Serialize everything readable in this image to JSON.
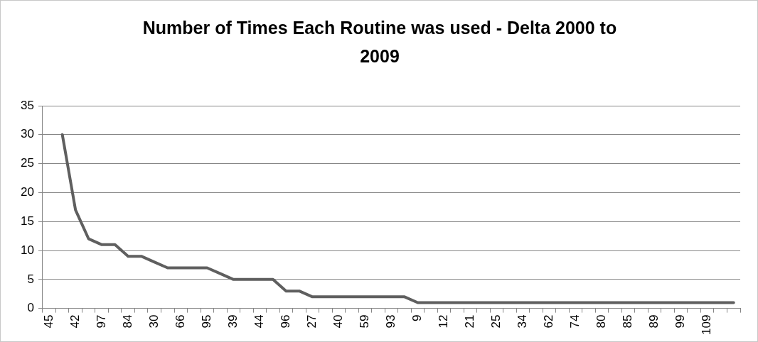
{
  "chart_data": {
    "type": "line",
    "title": "Number of Times Each Routine was  used - Delta 2000 to 2009",
    "categories": [
      "45",
      null,
      "42",
      null,
      "97",
      null,
      "84",
      null,
      "30",
      null,
      "66",
      null,
      "95",
      null,
      "39",
      null,
      "44",
      null,
      "96",
      null,
      "27",
      null,
      "40",
      null,
      "59",
      null,
      "93",
      null,
      "9",
      null,
      "12",
      null,
      "21",
      null,
      "25",
      null,
      "34",
      null,
      "62",
      null,
      "74",
      null,
      "80",
      null,
      "85",
      null,
      "89",
      null,
      "99",
      null,
      "109",
      null,
      null
    ],
    "series": [
      {
        "color": "#5f5f5f",
        "values": [
          null,
          30,
          17,
          12,
          11,
          11,
          9,
          9,
          8,
          7,
          7,
          7,
          7,
          6,
          5,
          5,
          5,
          5,
          3,
          3,
          2,
          2,
          2,
          2,
          2,
          2,
          2,
          2,
          1,
          1,
          1,
          1,
          1,
          1,
          1,
          1,
          1,
          1,
          1,
          1,
          1,
          1,
          1,
          1,
          1,
          1,
          1,
          1,
          1,
          1,
          1,
          1,
          1
        ]
      }
    ],
    "ylim": [
      0,
      35
    ],
    "yticks": [
      0,
      5,
      10,
      15,
      20,
      25,
      30,
      35
    ],
    "grid": "y",
    "legend": false,
    "marker": "none",
    "line_style": "solid"
  }
}
